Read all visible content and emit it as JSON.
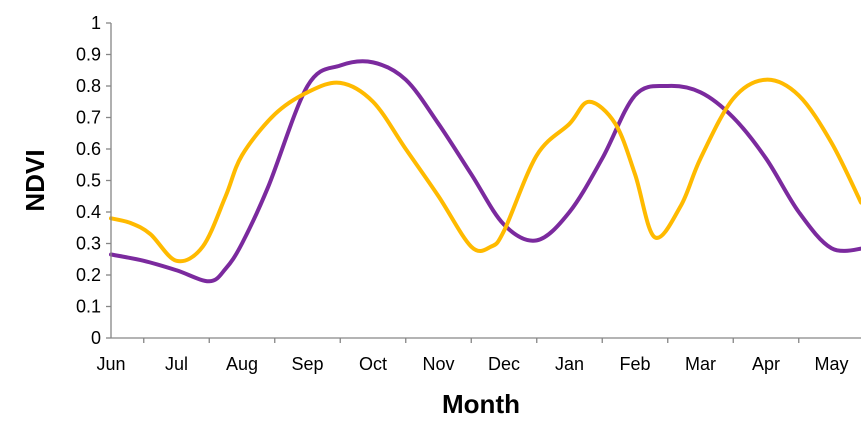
{
  "chart_data": {
    "type": "line",
    "xlabel": "Month",
    "ylabel": "NDVI",
    "ylim": [
      0,
      1
    ],
    "yticks": [
      "0",
      "0.1",
      "0.2",
      "0.3",
      "0.4",
      "0.5",
      "0.6",
      "0.7",
      "0.8",
      "0.9",
      "1"
    ],
    "categories": [
      "Jun",
      "Jul",
      "Aug",
      "Sep",
      "Oct",
      "Nov",
      "Dec",
      "Jan",
      "Feb",
      "Mar",
      "Apr",
      "May"
    ],
    "grid": false,
    "legend": "none",
    "series": [
      {
        "color": "#7B2A9E",
        "points": [
          [
            0.0,
            0.265
          ],
          [
            0.5,
            0.245
          ],
          [
            1.0,
            0.215
          ],
          [
            1.5,
            0.18
          ],
          [
            1.75,
            0.22
          ],
          [
            2.0,
            0.3
          ],
          [
            2.4,
            0.48
          ],
          [
            3.0,
            0.8
          ],
          [
            3.5,
            0.865
          ],
          [
            4.0,
            0.875
          ],
          [
            4.5,
            0.82
          ],
          [
            5.0,
            0.68
          ],
          [
            5.5,
            0.52
          ],
          [
            6.0,
            0.36
          ],
          [
            6.5,
            0.31
          ],
          [
            7.0,
            0.4
          ],
          [
            7.5,
            0.57
          ],
          [
            8.0,
            0.77
          ],
          [
            8.5,
            0.8
          ],
          [
            9.0,
            0.78
          ],
          [
            9.5,
            0.7
          ],
          [
            10.0,
            0.57
          ],
          [
            10.5,
            0.4
          ],
          [
            11.0,
            0.285
          ],
          [
            11.5,
            0.285
          ]
        ]
      },
      {
        "color": "#FFBA00",
        "points": [
          [
            0.0,
            0.38
          ],
          [
            0.3,
            0.365
          ],
          [
            0.6,
            0.33
          ],
          [
            1.0,
            0.245
          ],
          [
            1.4,
            0.29
          ],
          [
            1.75,
            0.45
          ],
          [
            2.0,
            0.58
          ],
          [
            2.5,
            0.71
          ],
          [
            3.0,
            0.78
          ],
          [
            3.5,
            0.81
          ],
          [
            4.0,
            0.75
          ],
          [
            4.5,
            0.6
          ],
          [
            5.0,
            0.45
          ],
          [
            5.5,
            0.29
          ],
          [
            5.8,
            0.29
          ],
          [
            6.0,
            0.34
          ],
          [
            6.5,
            0.58
          ],
          [
            7.0,
            0.68
          ],
          [
            7.3,
            0.75
          ],
          [
            7.7,
            0.68
          ],
          [
            8.0,
            0.52
          ],
          [
            8.3,
            0.32
          ],
          [
            8.7,
            0.42
          ],
          [
            9.0,
            0.57
          ],
          [
            9.5,
            0.76
          ],
          [
            10.0,
            0.82
          ],
          [
            10.5,
            0.77
          ],
          [
            11.0,
            0.62
          ],
          [
            11.45,
            0.43
          ]
        ]
      }
    ]
  }
}
